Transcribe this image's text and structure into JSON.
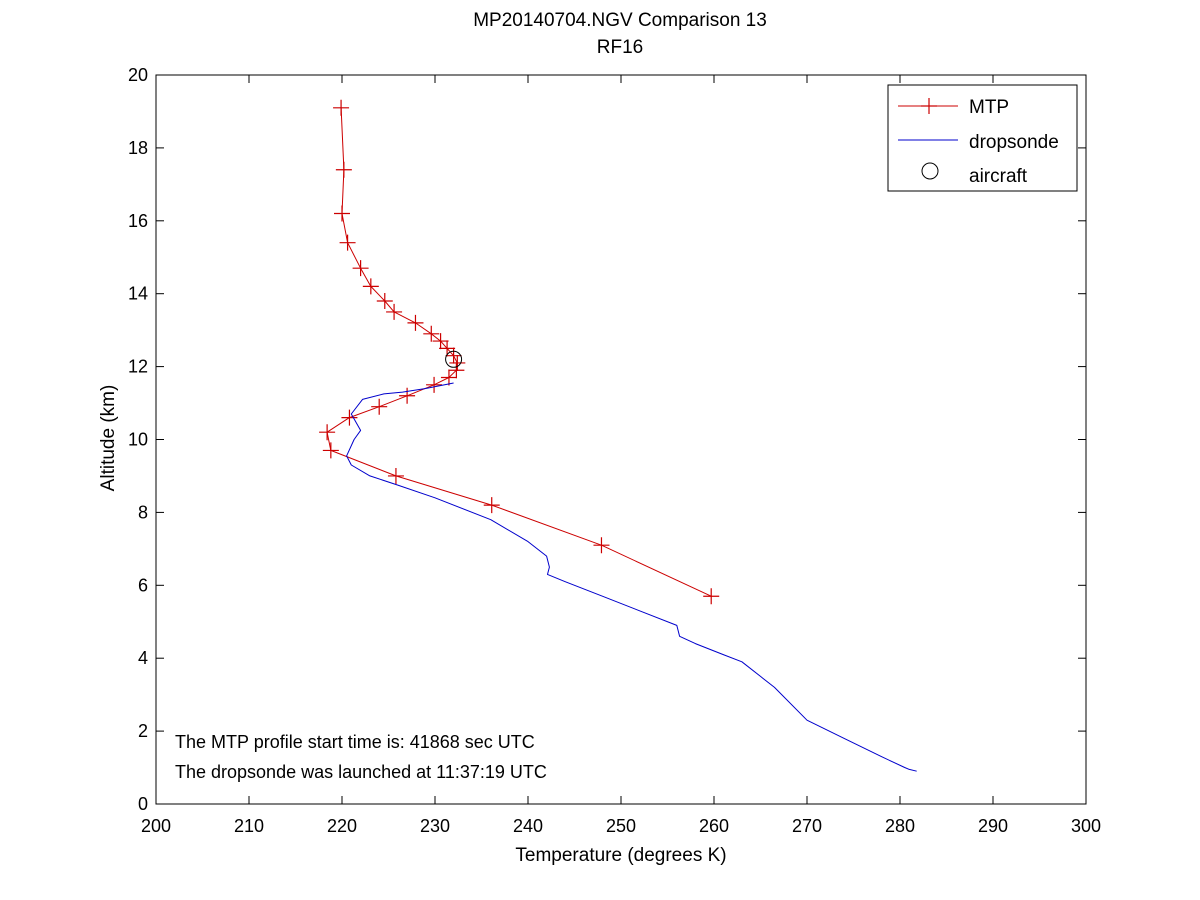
{
  "chart_data": {
    "type": "line",
    "title": "MP20140704.NGV Comparison 13",
    "subtitle": "RF16",
    "xlabel": "Temperature (degrees K)",
    "ylabel": "Altitude (km)",
    "xlim": [
      200,
      300
    ],
    "ylim": [
      0,
      20
    ],
    "xticks": [
      "200",
      "210",
      "220",
      "230",
      "240",
      "250",
      "260",
      "270",
      "280",
      "290",
      "300"
    ],
    "yticks": [
      "0",
      "2",
      "4",
      "6",
      "8",
      "10",
      "12",
      "14",
      "16",
      "18",
      "20"
    ],
    "grid": false,
    "legend_position": "top-right",
    "colors": {
      "mtp": "#cc0000",
      "dropsonde": "#0000cc",
      "aircraft": "#000000"
    },
    "series": [
      {
        "name": "MTP",
        "marker": "plus",
        "x": [
          219.9,
          220.2,
          220.0,
          220.6,
          222.0,
          223.1,
          224.6,
          225.6,
          227.9,
          229.6,
          230.6,
          231.3,
          232.0,
          232.4,
          232.3,
          231.5,
          229.9,
          227.0,
          224.0,
          220.8,
          218.4,
          218.8,
          225.8,
          236.1,
          247.9,
          259.7
        ],
        "y": [
          19.1,
          17.4,
          16.2,
          15.4,
          14.7,
          14.2,
          13.8,
          13.5,
          13.2,
          12.9,
          12.7,
          12.5,
          12.3,
          12.1,
          11.9,
          11.7,
          11.5,
          11.2,
          10.9,
          10.6,
          10.2,
          9.7,
          9.0,
          8.2,
          7.1,
          5.7
        ]
      },
      {
        "name": "dropsonde",
        "marker": "none",
        "x": [
          232.0,
          229.0,
          226.5,
          224.5,
          222.2,
          221.0,
          222.0,
          221.3,
          220.5,
          221.0,
          223.0,
          226.0,
          230.0,
          236.0,
          240.0,
          242.0,
          242.3,
          242.1,
          244.0,
          248.0,
          252.0,
          256.0,
          256.3,
          258.0,
          261.0,
          263.0,
          265.0,
          266.5,
          270.0,
          274.0,
          278.0,
          280.5,
          281.0,
          281.8
        ],
        "y": [
          11.55,
          11.4,
          11.3,
          11.25,
          11.1,
          10.7,
          10.25,
          10.0,
          9.55,
          9.3,
          9.0,
          8.75,
          8.4,
          7.8,
          7.2,
          6.8,
          6.5,
          6.3,
          6.1,
          5.7,
          5.3,
          4.9,
          4.6,
          4.4,
          4.1,
          3.9,
          3.5,
          3.2,
          2.3,
          1.8,
          1.3,
          1.0,
          0.95,
          0.9
        ]
      },
      {
        "name": "aircraft",
        "marker": "circle",
        "x": [
          232.0
        ],
        "y": [
          12.2
        ]
      }
    ],
    "annotations": [
      "The MTP profile start time is: 41868 sec UTC",
      "The dropsonde was launched at 11:37:19 UTC"
    ]
  }
}
